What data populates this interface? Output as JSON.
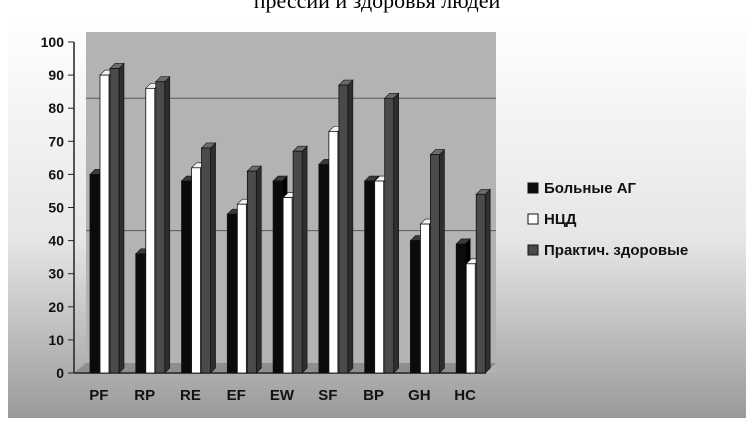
{
  "top_caption": "прессии и здоровья людей",
  "chart_data": {
    "type": "bar",
    "categories": [
      "PF",
      "RP",
      "RE",
      "EF",
      "EW",
      "SF",
      "BP",
      "GH",
      "HC"
    ],
    "series": [
      {
        "name": "Больные АГ",
        "color": "#0b0b0b",
        "values": [
          60,
          36,
          58,
          48,
          58,
          63,
          58,
          40,
          39
        ]
      },
      {
        "name": "НЦД",
        "color": "#ffffff",
        "values": [
          90,
          86,
          62,
          51,
          53,
          73,
          58,
          45,
          33
        ]
      },
      {
        "name": "Практич. здоровые",
        "color": "#4a4a4a",
        "values": [
          92,
          88,
          68,
          61,
          67,
          87,
          83,
          66,
          54
        ]
      }
    ],
    "y_ticks": [
      "0",
      "10",
      "20",
      "30",
      "40",
      "50",
      "60",
      "70",
      "80",
      "90",
      "100"
    ],
    "ylim": [
      0,
      100
    ],
    "gridlines": [
      40,
      80
    ],
    "legend_position": "right",
    "title": "",
    "xlabel": "",
    "ylabel": ""
  }
}
